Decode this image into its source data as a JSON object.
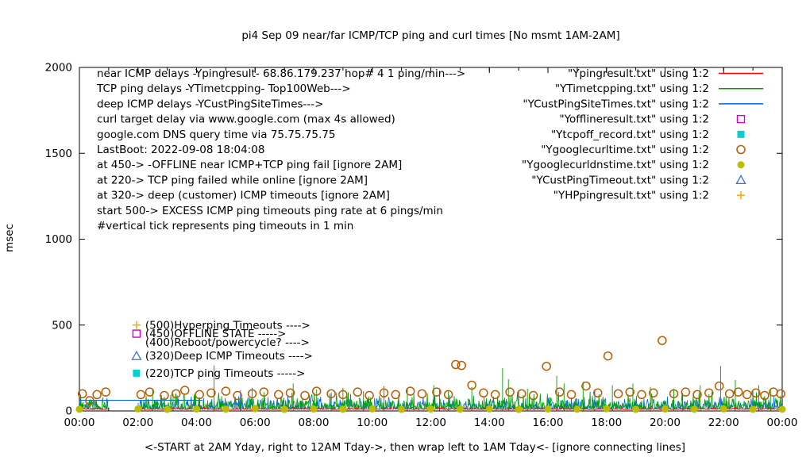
{
  "chart_data": {
    "type": "line",
    "title": "pi4 Sep 09  near/far ICMP/TCP ping and curl times [No msmt 1AM-2AM]",
    "ylabel": "msec",
    "xlabel": "<-START at 2AM Yday, right to 12AM Tday->, then wrap left to 1AM Tday<- [ignore connecting lines]",
    "ylim": [
      0,
      2000
    ],
    "xlim_hours": [
      0,
      24
    ],
    "grid": false,
    "legend_position": "top-right",
    "no_measurement_gap_hours": [
      1,
      2
    ],
    "yticks": [
      0,
      500,
      1000,
      1500,
      2000
    ],
    "xticks": [
      {
        "h": 0,
        "label": "00:00"
      },
      {
        "h": 2,
        "label": "02:00"
      },
      {
        "h": 4,
        "label": "04:00"
      },
      {
        "h": 6,
        "label": "06:00"
      },
      {
        "h": 8,
        "label": "08:00"
      },
      {
        "h": 10,
        "label": "10:00"
      },
      {
        "h": 12,
        "label": "12:00"
      },
      {
        "h": 14,
        "label": "14:00"
      },
      {
        "h": 16,
        "label": "16:00"
      },
      {
        "h": 18,
        "label": "18:00"
      },
      {
        "h": 20,
        "label": "20:00"
      },
      {
        "h": 22,
        "label": "22:00"
      },
      {
        "h": 24,
        "label": "00:00"
      }
    ],
    "legend": [
      {
        "label": "\"Ypingresult.txt\" using 1:2",
        "sample": "line",
        "color": "#ff0000"
      },
      {
        "label": "\"YTimetcpping.txt\" using 1:2",
        "sample": "line",
        "color": "#00a000"
      },
      {
        "label": "\"YCustPingSiteTimes.txt\" using 1:2",
        "sample": "line",
        "color": "#0064e0"
      },
      {
        "label": "\"Yofflineresult.txt\" using 1:2",
        "sample": "open-square",
        "color": "#d000d0"
      },
      {
        "label": "\"Ytcpoff_record.txt\" using 1:2",
        "sample": "filled-square",
        "color": "#00d0d0"
      },
      {
        "label": "\"Ygooglecurltime.txt\" using 1:2",
        "sample": "open-circle",
        "color": "#b85c00"
      },
      {
        "label": "\"Ygooglecurldnstime.txt\" using 1:2",
        "sample": "filled-circle",
        "color": "#bdbd00"
      },
      {
        "label": "\"YCustPingTimeout.txt\" using 1:2",
        "sample": "open-triangle",
        "color": "#3c6fe0"
      },
      {
        "label": "\"YHPpingresult.txt\" using 1:2",
        "sample": "plus",
        "color": "#ffa500"
      }
    ],
    "annotations": {
      "lines": [
        "near ICMP delays -Ypingresult- 68.86.179.237 hop# 4 1 ping/min--->",
        "TCP ping delays -YTimetcpping- Top100Web--->",
        "deep ICMP delays -YCustPingSiteTimes--->",
        "curl target delay via www.google.com (max 4s allowed)",
        "google.com DNS query time via 75.75.75.75",
        "LastBoot: 2022-09-08 18:04:08",
        "at 450-> -OFFLINE near ICMP+TCP ping fail [ignore 2AM]",
        "at 220-> TCP ping failed while online [ignore 2AM]",
        "at 320-> deep (customer) ICMP timeouts [ignore 2AM]",
        "start 500-> EXCESS ICMP ping timeouts ping rate at 6 pings/min",
        "        #vertical tick represents ping timeouts in 1 min"
      ],
      "markers": [
        {
          "marker": "plus",
          "color": "#ffa500",
          "value": 500,
          "x_hours": 1.95,
          "label": "(500)Hyperping Timeouts ---->"
        },
        {
          "marker": "open-square",
          "color": "#d000d0",
          "value": 450,
          "x_hours": 1.95,
          "label": "(450)OFFLINE STATE ----->"
        },
        {
          "marker": "none",
          "color": "#000000",
          "value": 400,
          "x_hours": 1.95,
          "label": "(400)Reboot/powercycle? ---->"
        },
        {
          "marker": "open-triangle",
          "color": "#3c6fe0",
          "value": 320,
          "x_hours": 1.95,
          "label": "(320)Deep ICMP Timeouts ---->"
        },
        {
          "marker": "filled-square",
          "color": "#00d0d0",
          "value": 220,
          "x_hours": 1.95,
          "label": "(220)TCP ping Timeouts ----->"
        }
      ]
    },
    "series": [
      {
        "name": "Ypingresult",
        "type": "line",
        "color": "#ff0000",
        "baseline": 8,
        "amplitude": 14,
        "seed": 7,
        "spikes": [],
        "segments": []
      },
      {
        "name": "YTimetcpping",
        "type": "line",
        "color": "#00a000",
        "baseline": 10,
        "amplitude": 110,
        "seed": 13,
        "spikes": [
          [
            2.5,
            130
          ],
          [
            3.2,
            100
          ],
          [
            4.6,
            265
          ],
          [
            5.9,
            135
          ],
          [
            6.3,
            110
          ],
          [
            7.3,
            160
          ],
          [
            8.1,
            125
          ],
          [
            9.0,
            135
          ],
          [
            9.7,
            115
          ],
          [
            10.4,
            145
          ],
          [
            11.2,
            130
          ],
          [
            12.1,
            150
          ],
          [
            12.6,
            120
          ],
          [
            13.4,
            140
          ],
          [
            14.45,
            250
          ],
          [
            14.65,
            185
          ],
          [
            15.3,
            130
          ],
          [
            16.3,
            205
          ],
          [
            16.55,
            160
          ],
          [
            17.2,
            170
          ],
          [
            18.2,
            150
          ],
          [
            18.9,
            160
          ],
          [
            19.5,
            140
          ],
          [
            20.3,
            130
          ],
          [
            21.2,
            150
          ],
          [
            21.9,
            262
          ],
          [
            22.4,
            180
          ],
          [
            23.2,
            150
          ],
          [
            23.6,
            130
          ]
        ],
        "segments": []
      },
      {
        "name": "YCustPingSiteTimes",
        "type": "line",
        "color": "#0064e0",
        "baseline": 12,
        "amplitude": 85,
        "seed": 29,
        "spikes": [
          [
            5.5,
            120
          ],
          [
            8.6,
            105
          ],
          [
            12.3,
            130
          ],
          [
            15.0,
            115
          ],
          [
            17.6,
            125
          ],
          [
            20.6,
            105
          ],
          [
            23.0,
            115
          ]
        ],
        "segments": [
          [
            0,
            62,
            4.2,
            62
          ]
        ]
      },
      {
        "name": "Yofflineresult",
        "type": "open-square",
        "color": "#d000d0",
        "points": []
      },
      {
        "name": "Ytcpoff_record",
        "type": "filled-square",
        "color": "#00d0d0",
        "points": []
      },
      {
        "name": "Ygooglecurltime",
        "type": "open-circle",
        "color": "#b85c00",
        "points": [
          [
            0.1,
            100
          ],
          [
            0.35,
            60
          ],
          [
            0.6,
            95
          ],
          [
            0.9,
            110
          ],
          [
            2.1,
            95
          ],
          [
            2.4,
            110
          ],
          [
            2.9,
            90
          ],
          [
            3.3,
            100
          ],
          [
            3.6,
            120
          ],
          [
            4.1,
            95
          ],
          [
            4.5,
            105
          ],
          [
            5.0,
            115
          ],
          [
            5.4,
            90
          ],
          [
            5.9,
            100
          ],
          [
            6.3,
            110
          ],
          [
            6.8,
            95
          ],
          [
            7.2,
            105
          ],
          [
            7.7,
            90
          ],
          [
            8.1,
            115
          ],
          [
            8.6,
            100
          ],
          [
            9.0,
            95
          ],
          [
            9.5,
            110
          ],
          [
            9.9,
            90
          ],
          [
            10.4,
            105
          ],
          [
            10.8,
            95
          ],
          [
            11.3,
            115
          ],
          [
            11.7,
            100
          ],
          [
            12.2,
            110
          ],
          [
            12.6,
            95
          ],
          [
            12.85,
            270
          ],
          [
            13.05,
            265
          ],
          [
            13.4,
            150
          ],
          [
            13.8,
            105
          ],
          [
            14.2,
            95
          ],
          [
            14.7,
            110
          ],
          [
            15.1,
            100
          ],
          [
            15.5,
            90
          ],
          [
            15.95,
            260
          ],
          [
            16.4,
            110
          ],
          [
            16.8,
            95
          ],
          [
            17.3,
            145
          ],
          [
            17.7,
            105
          ],
          [
            18.05,
            320
          ],
          [
            18.4,
            100
          ],
          [
            18.8,
            110
          ],
          [
            19.2,
            95
          ],
          [
            19.6,
            105
          ],
          [
            19.9,
            410
          ],
          [
            20.3,
            100
          ],
          [
            20.7,
            110
          ],
          [
            21.1,
            95
          ],
          [
            21.5,
            105
          ],
          [
            21.85,
            145
          ],
          [
            22.2,
            100
          ],
          [
            22.5,
            110
          ],
          [
            22.8,
            95
          ],
          [
            23.1,
            105
          ],
          [
            23.4,
            90
          ],
          [
            23.7,
            110
          ],
          [
            23.95,
            100
          ]
        ]
      },
      {
        "name": "Ygooglecurldnstime",
        "type": "filled-circle",
        "color": "#bdbd00",
        "points": [
          [
            0,
            10
          ],
          [
            2,
            12
          ],
          [
            3,
            9
          ],
          [
            4,
            11
          ],
          [
            5,
            10
          ],
          [
            6,
            13
          ],
          [
            7,
            9
          ],
          [
            8,
            11
          ],
          [
            9,
            10
          ],
          [
            10,
            12
          ],
          [
            11,
            9
          ],
          [
            12,
            11
          ],
          [
            13,
            10
          ],
          [
            14,
            12
          ],
          [
            15,
            9
          ],
          [
            16,
            11
          ],
          [
            17,
            10
          ],
          [
            18,
            13
          ],
          [
            19,
            9
          ],
          [
            20,
            11
          ],
          [
            21,
            10
          ],
          [
            22,
            12
          ],
          [
            23,
            9
          ],
          [
            24,
            10
          ]
        ]
      },
      {
        "name": "YCustPingTimeout",
        "type": "open-triangle",
        "color": "#3c6fe0",
        "points": []
      },
      {
        "name": "YHPpingresult",
        "type": "plus",
        "color": "#ffa500",
        "points": []
      }
    ]
  }
}
